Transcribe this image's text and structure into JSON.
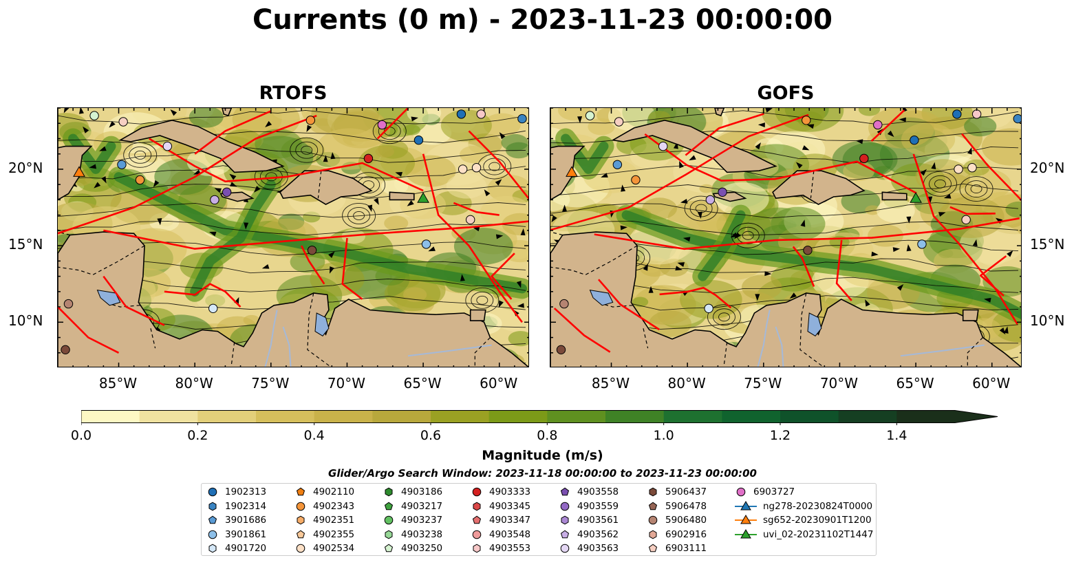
{
  "title": "Currents (0 m) - 2023-11-23 00:00:00",
  "panels": [
    {
      "title": "RTOFS"
    },
    {
      "title": "GOFS"
    }
  ],
  "map_axes": {
    "lon_range": [
      -89,
      -58
    ],
    "lat_range": [
      7,
      24
    ],
    "lon_ticks": [
      "85°W",
      "80°W",
      "75°W",
      "70°W",
      "65°W",
      "60°W"
    ],
    "lat_ticks": [
      "20°N",
      "15°N",
      "10°N"
    ],
    "land_color": "#d2b48c",
    "ocean_low_color": "#fbf5c0",
    "ocean_high_color": "#1a3a1a",
    "track_color": "#ff0000"
  },
  "colorbar": {
    "label": "Magnitude (m/s)",
    "range": [
      0,
      1.5
    ],
    "extend": "max",
    "tick_labels": [
      "0.0",
      "0.2",
      "0.4",
      "0.6",
      "0.8",
      "1.0",
      "1.2",
      "1.4"
    ],
    "colors": [
      "#fdf8c4",
      "#f0e2a0",
      "#e3cf7a",
      "#d6bf5c",
      "#c9b24a",
      "#b8a83c",
      "#9aa123",
      "#7c9a18",
      "#5f9020",
      "#3f8226",
      "#1e7130",
      "#10632e",
      "#0f522a",
      "#153f22",
      "#1a2f1a"
    ]
  },
  "search_window": "Glider/Argo Search Window: 2023-11-18 00:00:00 to 2023-11-23 00:00:00",
  "legend": [
    {
      "label": "1902313",
      "marker": "circle",
      "color": "#1f6fb5"
    },
    {
      "label": "1902314",
      "marker": "hexagon",
      "color": "#3a84c2"
    },
    {
      "label": "3901686",
      "marker": "pentagon",
      "color": "#5a9bd5"
    },
    {
      "label": "3901861",
      "marker": "circle",
      "color": "#8dbfe8"
    },
    {
      "label": "4901720",
      "marker": "hexagon",
      "color": "#d5e8f8"
    },
    {
      "label": "4902110",
      "marker": "pentagon",
      "color": "#f07f12"
    },
    {
      "label": "4902343",
      "marker": "circle",
      "color": "#f4953a"
    },
    {
      "label": "4902351",
      "marker": "hexagon",
      "color": "#f7ad68"
    },
    {
      "label": "4902355",
      "marker": "pentagon",
      "color": "#f9c99a"
    },
    {
      "label": "4902534",
      "marker": "circle",
      "color": "#fce0c6"
    },
    {
      "label": "4903186",
      "marker": "hexagon",
      "color": "#2e8b2e"
    },
    {
      "label": "4903217",
      "marker": "pentagon",
      "color": "#3fa33f"
    },
    {
      "label": "4903237",
      "marker": "circle",
      "color": "#62c162"
    },
    {
      "label": "4903238",
      "marker": "hexagon",
      "color": "#97d897"
    },
    {
      "label": "4903250",
      "marker": "pentagon",
      "color": "#d6f3d1"
    },
    {
      "label": "4903333",
      "marker": "circle",
      "color": "#d42020"
    },
    {
      "label": "4903345",
      "marker": "hexagon",
      "color": "#db4848"
    },
    {
      "label": "4903347",
      "marker": "pentagon",
      "color": "#e57070"
    },
    {
      "label": "4903548",
      "marker": "circle",
      "color": "#ef9b9b"
    },
    {
      "label": "4903553",
      "marker": "hexagon",
      "color": "#f7c8c8"
    },
    {
      "label": "4903558",
      "marker": "pentagon",
      "color": "#7a4fb0"
    },
    {
      "label": "4903559",
      "marker": "circle",
      "color": "#9369c4"
    },
    {
      "label": "4903561",
      "marker": "hexagon",
      "color": "#ab88d4"
    },
    {
      "label": "4903562",
      "marker": "pentagon",
      "color": "#c8aee5"
    },
    {
      "label": "4903563",
      "marker": "circle",
      "color": "#e4d7f4"
    },
    {
      "label": "5906437",
      "marker": "hexagon",
      "color": "#7b4a3a"
    },
    {
      "label": "5906478",
      "marker": "pentagon",
      "color": "#966555"
    },
    {
      "label": "5906480",
      "marker": "circle",
      "color": "#b58472"
    },
    {
      "label": "6902916",
      "marker": "hexagon",
      "color": "#e2a896"
    },
    {
      "label": "6903111",
      "marker": "pentagon",
      "color": "#f6cfc2"
    },
    {
      "label": "6903727",
      "marker": "circle",
      "color": "#e070c8"
    },
    {
      "label": "ng278-20230824T0000",
      "marker": "triangle-line",
      "color": "#1f77b4"
    },
    {
      "label": "sg652-20230901T1200",
      "marker": "triangle-line",
      "color": "#ff7f0e"
    },
    {
      "label": "uvi_02-20231102T1447",
      "marker": "triangle-line",
      "color": "#2ca02c"
    }
  ]
}
